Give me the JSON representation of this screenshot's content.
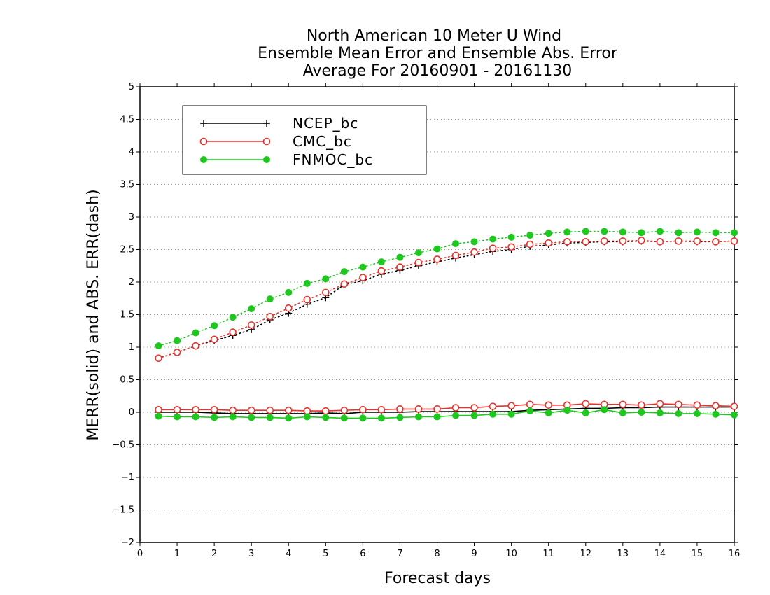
{
  "chart_data": {
    "type": "line",
    "title": [
      "North American 10 Meter U Wind",
      "Ensemble Mean Error and Ensemble Abs. Error",
      "Average For 20160901 - 20161130"
    ],
    "xlabel": "Forecast days",
    "ylabel": "MERR(solid) and ABS. ERR(dash)",
    "xlim": [
      0,
      16
    ],
    "ylim": [
      -2,
      5
    ],
    "xticks": [
      "0",
      "1",
      "2",
      "3",
      "4",
      "5",
      "6",
      "7",
      "8",
      "9",
      "10",
      "11",
      "12",
      "13",
      "14",
      "15",
      "16"
    ],
    "yticks": [
      "−2",
      "−1.5",
      "−1",
      "−0.5",
      "0",
      "0.5",
      "1",
      "1.5",
      "2",
      "2.5",
      "3",
      "3.5",
      "4",
      "4.5",
      "5"
    ],
    "grid": true,
    "legend_position": "top-left",
    "x": [
      0.5,
      1,
      1.5,
      2,
      2.5,
      3,
      3.5,
      4,
      4.5,
      5,
      5.5,
      6,
      6.5,
      7,
      7.5,
      8,
      8.5,
      9,
      9.5,
      10,
      10.5,
      11,
      11.5,
      12,
      12.5,
      13,
      13.5,
      14,
      14.5,
      15,
      15.5,
      16
    ],
    "series": [
      {
        "name": "NCEP_bc",
        "color": "#000000",
        "marker": "plus",
        "merr": [
          0.0,
          0.0,
          0.0,
          -0.01,
          -0.02,
          -0.02,
          -0.02,
          -0.02,
          -0.02,
          -0.01,
          -0.02,
          0.0,
          0.0,
          0.0,
          0.01,
          0.01,
          0.01,
          0.01,
          0.01,
          0.01,
          0.03,
          0.04,
          0.05,
          0.06,
          0.06,
          0.07,
          0.07,
          0.08,
          0.08,
          0.08,
          0.08,
          0.08
        ],
        "abs_err": [
          0.83,
          0.92,
          1.02,
          1.1,
          1.18,
          1.27,
          1.42,
          1.52,
          1.66,
          1.76,
          1.96,
          2.02,
          2.12,
          2.18,
          2.25,
          2.31,
          2.37,
          2.42,
          2.47,
          2.5,
          2.55,
          2.57,
          2.6,
          2.61,
          2.62,
          2.62,
          2.63,
          2.62,
          2.63,
          2.62,
          2.62,
          2.63
        ]
      },
      {
        "name": "CMC_bc",
        "color": "#e8322d",
        "marker": "open-circle",
        "merr": [
          0.04,
          0.04,
          0.04,
          0.04,
          0.03,
          0.03,
          0.03,
          0.03,
          0.02,
          0.02,
          0.03,
          0.04,
          0.04,
          0.05,
          0.05,
          0.05,
          0.07,
          0.07,
          0.09,
          0.1,
          0.12,
          0.11,
          0.11,
          0.13,
          0.12,
          0.12,
          0.11,
          0.13,
          0.12,
          0.11,
          0.1,
          0.09
        ],
        "abs_err": [
          0.83,
          0.92,
          1.02,
          1.12,
          1.23,
          1.34,
          1.47,
          1.6,
          1.73,
          1.84,
          1.97,
          2.07,
          2.17,
          2.23,
          2.3,
          2.35,
          2.41,
          2.46,
          2.52,
          2.54,
          2.58,
          2.6,
          2.62,
          2.62,
          2.63,
          2.63,
          2.64,
          2.62,
          2.63,
          2.63,
          2.62,
          2.63
        ]
      },
      {
        "name": "FNMOC_bc",
        "color": "#1ec81e",
        "marker": "filled-circle",
        "merr": [
          -0.06,
          -0.07,
          -0.07,
          -0.08,
          -0.07,
          -0.08,
          -0.08,
          -0.09,
          -0.07,
          -0.08,
          -0.09,
          -0.09,
          -0.09,
          -0.08,
          -0.07,
          -0.07,
          -0.05,
          -0.05,
          -0.03,
          -0.03,
          0.02,
          -0.01,
          0.03,
          -0.01,
          0.04,
          -0.01,
          0.0,
          -0.01,
          -0.02,
          -0.02,
          -0.03,
          -0.04
        ],
        "abs_err": [
          1.02,
          1.1,
          1.22,
          1.33,
          1.46,
          1.59,
          1.74,
          1.84,
          1.98,
          2.05,
          2.16,
          2.23,
          2.31,
          2.38,
          2.45,
          2.51,
          2.59,
          2.62,
          2.66,
          2.69,
          2.72,
          2.75,
          2.77,
          2.78,
          2.78,
          2.77,
          2.76,
          2.78,
          2.76,
          2.77,
          2.76,
          2.76
        ]
      }
    ]
  }
}
